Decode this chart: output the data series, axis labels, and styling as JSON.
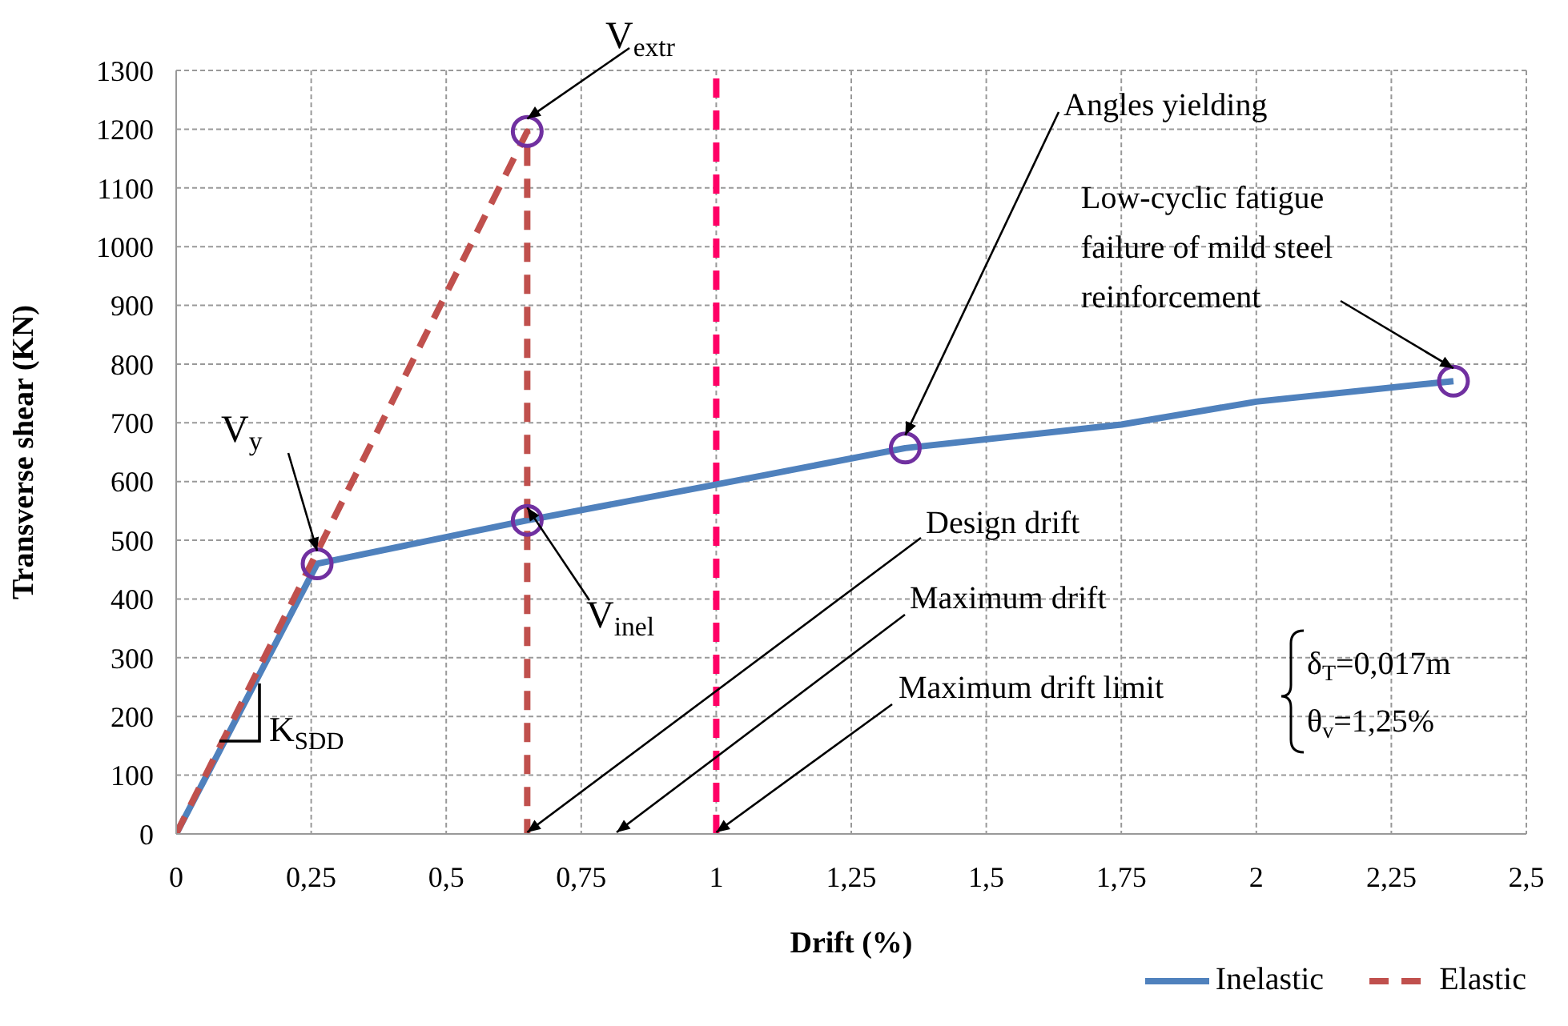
{
  "chart_data": {
    "type": "line",
    "xlabel": "Drift (%)",
    "ylabel": "Transverse shear (KN)",
    "xlim": [
      0,
      2.5
    ],
    "xticks": [
      0,
      {
        "value": 0.25,
        "label": "0,25"
      },
      {
        "value": 0.5,
        "label": "0,5"
      },
      {
        "value": 0.75,
        "label": "0,75"
      },
      1,
      {
        "value": 1.25,
        "label": "1,25"
      },
      {
        "value": 1.5,
        "label": "1,5"
      },
      {
        "value": 1.75,
        "label": "1,75"
      },
      2,
      {
        "value": 2.25,
        "label": "2,25"
      },
      {
        "value": 2.5,
        "label": "2,5"
      }
    ],
    "ylim": [
      0,
      1300
    ],
    "yticks": [
      0,
      100,
      200,
      300,
      400,
      500,
      600,
      700,
      800,
      900,
      1000,
      1100,
      1200,
      1300
    ],
    "grid": true,
    "legend": "bottom right",
    "series": [
      {
        "name": "Inelastic",
        "color": "#4f81bd",
        "line_style": "solid",
        "x": [
          0,
          0.261,
          0.65,
          1,
          1.35,
          1.75,
          2,
          2.365
        ],
        "values": [
          0,
          460,
          534,
          595,
          657,
          697,
          736,
          771
        ]
      },
      {
        "name": "Elastic",
        "color": "#c0504d",
        "line_style": "dashed",
        "x": [
          0,
          0.65,
          0.65
        ],
        "values": [
          0,
          1196,
          0
        ]
      },
      {
        "type": "scatter",
        "color": "#7030a0",
        "marker": "circle",
        "x": [
          0.261,
          0.65,
          0.65,
          1.35,
          2.365
        ],
        "values": [
          460,
          534,
          1196,
          657,
          771
        ]
      }
    ],
    "ref_lines": [
      {
        "axis": "x",
        "value": 1,
        "color": "#ff0066",
        "line_style": "dashed"
      }
    ],
    "annotations": [
      {
        "text": "V$_{extr}$",
        "x": 0.65,
        "y": 1196
      },
      {
        "text": "Angles yielding",
        "x": 1.35,
        "y": 657
      },
      {
        "text": "Low-cyclic fatigue failure of mild steel reinforcement",
        "x": 2.365,
        "y": 771
      },
      {
        "text": "V$_{y}$",
        "x": 0.261,
        "y": 460
      },
      {
        "text": "V$_{inel}$",
        "x": 0.65,
        "y": 534
      },
      {
        "text": "Design drift",
        "x": 0.65,
        "y": 0
      },
      "Maximum drift",
      {
        "text": "Maximum drift limit",
        "x": 1,
        "y": 0
      },
      "δ$_{T}$=0,017m",
      "θ$_{v}$=1,25%",
      "K$_{SDD}$"
    ]
  }
}
